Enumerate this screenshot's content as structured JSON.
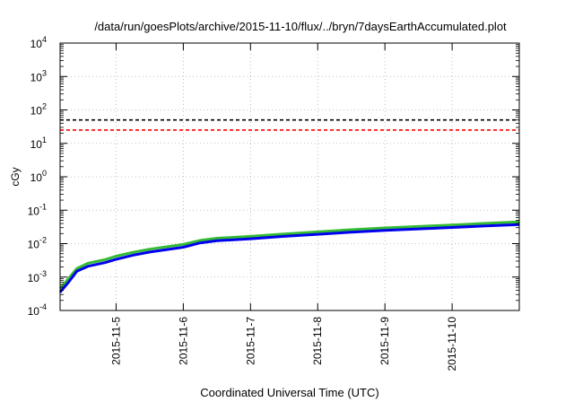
{
  "chart_data": {
    "type": "line",
    "title": "/data/run/goesPlots/archive/2015-11-10/flux/../bryn/7daysEarthAccumulated.plot",
    "xlabel": "Coordinated Universal Time (UTC)",
    "ylabel": "cGy",
    "x_scale": "time",
    "y_scale": "log",
    "xlim": [
      "2015-11-04T04:00",
      "2015-11-10T23:59"
    ],
    "ylim": [
      0.0001,
      10000
    ],
    "x_ticks": [
      "2015-11-5",
      "2015-11-6",
      "2015-11-7",
      "2015-11-8",
      "2015-11-9",
      "2015-11-10"
    ],
    "x_tick_dates": [
      "2015-11-05",
      "2015-11-06",
      "2015-11-07",
      "2015-11-08",
      "2015-11-09",
      "2015-11-10"
    ],
    "y_ticks": [
      {
        "base": "10",
        "exp": "-4",
        "value": 0.0001
      },
      {
        "base": "10",
        "exp": "-3",
        "value": 0.001
      },
      {
        "base": "10",
        "exp": "-2",
        "value": 0.01
      },
      {
        "base": "10",
        "exp": "-1",
        "value": 0.1
      },
      {
        "base": "10",
        "exp": "0",
        "value": 1
      },
      {
        "base": "10",
        "exp": "1",
        "value": 10
      },
      {
        "base": "10",
        "exp": "2",
        "value": 100
      },
      {
        "base": "10",
        "exp": "3",
        "value": 1000
      },
      {
        "base": "10",
        "exp": "4",
        "value": 10000
      }
    ],
    "grid": true,
    "reference_lines": [
      {
        "y": 50,
        "color": "#000000",
        "style": "dashed"
      },
      {
        "y": 25,
        "color": "#ff0000",
        "style": "dashed"
      }
    ],
    "series": [
      {
        "color": "#33bb33",
        "x": [
          "2015-11-04T04:00",
          "2015-11-04T07:00",
          "2015-11-04T10:00",
          "2015-11-04T14:00",
          "2015-11-04T20:00",
          "2015-11-05T00:00",
          "2015-11-05T06:00",
          "2015-11-05T12:00",
          "2015-11-06T00:00",
          "2015-11-06T06:00",
          "2015-11-06T12:00",
          "2015-11-07T00:00",
          "2015-11-07T12:00",
          "2015-11-08T00:00",
          "2015-11-08T12:00",
          "2015-11-09T00:00",
          "2015-11-09T12:00",
          "2015-11-10T00:00",
          "2015-11-10T12:00",
          "2015-11-10T23:59"
        ],
        "values": [
          0.00045,
          0.0009,
          0.0018,
          0.0026,
          0.0033,
          0.0042,
          0.0055,
          0.0068,
          0.0095,
          0.0125,
          0.0145,
          0.0165,
          0.0195,
          0.0225,
          0.026,
          0.0295,
          0.0325,
          0.036,
          0.0405,
          0.0445
        ]
      },
      {
        "color": "#0000ee",
        "x": [
          "2015-11-04T04:00",
          "2015-11-04T07:00",
          "2015-11-04T10:00",
          "2015-11-04T14:00",
          "2015-11-04T20:00",
          "2015-11-05T00:00",
          "2015-11-05T06:00",
          "2015-11-05T12:00",
          "2015-11-06T00:00",
          "2015-11-06T06:00",
          "2015-11-06T12:00",
          "2015-11-07T00:00",
          "2015-11-07T12:00",
          "2015-11-08T00:00",
          "2015-11-08T12:00",
          "2015-11-09T00:00",
          "2015-11-09T12:00",
          "2015-11-10T00:00",
          "2015-11-10T12:00",
          "2015-11-10T23:59"
        ],
        "values": [
          0.00035,
          0.0007,
          0.0015,
          0.0021,
          0.0027,
          0.0034,
          0.0045,
          0.0056,
          0.0078,
          0.0105,
          0.0122,
          0.014,
          0.0165,
          0.019,
          0.022,
          0.025,
          0.0275,
          0.0305,
          0.034,
          0.037
        ]
      }
    ]
  }
}
